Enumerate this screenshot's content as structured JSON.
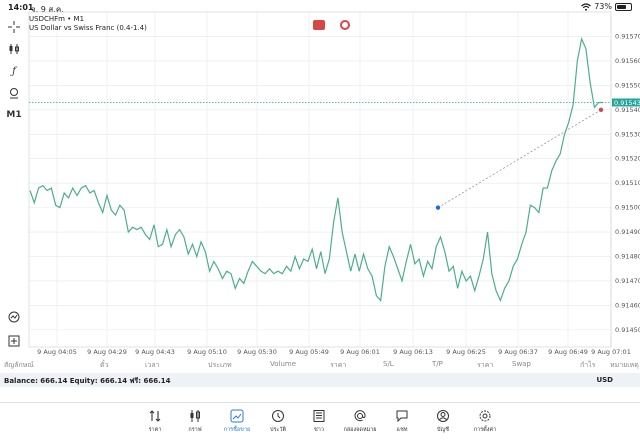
{
  "status_bar": {
    "time": "14:01",
    "date": "จ. 9 ส.ค.",
    "battery": "73%",
    "battery_level": 0.73
  },
  "chart": {
    "symbol_title": "USDCHFm • M1",
    "description": "US Dollar vs Swiss Franc (0.4-1.4)",
    "current_price_label": "0.91543"
  },
  "chart_data": {
    "type": "line",
    "title": "USDCHFm • M1",
    "subtitle": "US Dollar vs Swiss Franc (0.4-1.4)",
    "ylim": [
      0.91443,
      0.9158
    ],
    "y_ticks": [
      "0.91570",
      "0.91560",
      "0.91550",
      "0.91540",
      "0.91530",
      "0.91520",
      "0.91510",
      "0.91500",
      "0.91490",
      "0.91480",
      "0.91470",
      "0.91460",
      "0.91450"
    ],
    "y_tick_values": [
      0.9157,
      0.9156,
      0.9155,
      0.9154,
      0.9153,
      0.9152,
      0.9151,
      0.915,
      0.9149,
      0.9148,
      0.9147,
      0.9146,
      0.9145
    ],
    "x_ticks": [
      "9 Aug 04:05",
      "9 Aug 04:29",
      "9 Aug 04:43",
      "9 Aug 05:10",
      "9 Aug 05:30",
      "9 Aug 05:49",
      "9 Aug 06:01",
      "9 Aug 06:13",
      "9 Aug 06:25",
      "9 Aug 06:37",
      "9 Aug 06:49",
      "9 Aug 07:01"
    ],
    "grid": true,
    "current_price": 0.91543,
    "series": [
      {
        "values": [
          0.91507,
          0.91502,
          0.91508,
          0.91509,
          0.91507,
          0.91508,
          0.91501,
          0.915,
          0.91506,
          0.91504,
          0.91508,
          0.91505,
          0.91508,
          0.91509,
          0.91506,
          0.91507,
          0.91502,
          0.91498,
          0.91505,
          0.91499,
          0.91497,
          0.91501,
          0.91499,
          0.9149,
          0.91492,
          0.91491,
          0.91492,
          0.91489,
          0.91487,
          0.91493,
          0.91484,
          0.91485,
          0.91491,
          0.91484,
          0.91489,
          0.91491,
          0.91488,
          0.91481,
          0.91485,
          0.9148,
          0.91486,
          0.91482,
          0.91474,
          0.91478,
          0.91475,
          0.91471,
          0.91474,
          0.91473,
          0.91467,
          0.91471,
          0.91469,
          0.91474,
          0.91478,
          0.91476,
          0.91474,
          0.91473,
          0.91475,
          0.91473,
          0.91474,
          0.91473,
          0.91476,
          0.91474,
          0.9148,
          0.91475,
          0.91479,
          0.91478,
          0.91483,
          0.91475,
          0.91482,
          0.91473,
          0.91479,
          0.91494,
          0.91504,
          0.9149,
          0.91482,
          0.91474,
          0.91481,
          0.91474,
          0.91481,
          0.91475,
          0.91472,
          0.91464,
          0.91462,
          0.91476,
          0.91484,
          0.9148,
          0.91475,
          0.9147,
          0.91478,
          0.91485,
          0.91477,
          0.91479,
          0.91472,
          0.91478,
          0.91475,
          0.91484,
          0.91488,
          0.91482,
          0.91474,
          0.91476,
          0.91467,
          0.91474,
          0.9147,
          0.91472,
          0.91466,
          0.91472,
          0.91479,
          0.9149,
          0.91473,
          0.91466,
          0.91462,
          0.91467,
          0.9147,
          0.91476,
          0.91479,
          0.91485,
          0.9149,
          0.91501,
          0.915,
          0.91498,
          0.91508,
          0.91508,
          0.91515,
          0.91519,
          0.91522,
          0.9153,
          0.91535,
          0.91542,
          0.9156,
          0.91569,
          0.91565,
          0.91551,
          0.91541,
          0.91543,
          0.91543
        ]
      }
    ],
    "annotation_line": {
      "from": [
        0.915
      ],
      "to": [
        0.9154
      ]
    }
  },
  "table_header": {
    "columns": [
      "สัญลักษณ์",
      "ตั๋ว",
      "เวลา",
      "ประเภท",
      "Volume",
      "ราคา",
      "S/L",
      "T/P",
      "ราคา",
      "Swap",
      "กำไร",
      "หมายเหตุ"
    ]
  },
  "balance_bar": {
    "text": "Balance: 666.14 Equity: 666.14 ฟรี: 666.14",
    "currency": "USD"
  },
  "bottom_nav": {
    "items": [
      {
        "label": "ราคา",
        "icon": "arrows-updown-icon"
      },
      {
        "label": "กราฟ",
        "icon": "candles-icon"
      },
      {
        "label": "การซื้อขาย",
        "icon": "trade-chart-icon",
        "active": true
      },
      {
        "label": "ประวัติ",
        "icon": "history-icon"
      },
      {
        "label": "ข่าว",
        "icon": "news-icon"
      },
      {
        "label": "กล่องจดหมาย",
        "icon": "mailbox-icon"
      },
      {
        "label": "แชท",
        "icon": "chat-icon"
      },
      {
        "label": "บัญชี",
        "icon": "account-icon"
      },
      {
        "label": "การตั้งค่า",
        "icon": "settings-icon"
      }
    ]
  },
  "colors": {
    "line": "#4caf8a",
    "grid": "#e4e8ee",
    "price_badge": "#26a69a",
    "annotation": "#1e6fd9",
    "active": "#2a7bd5"
  }
}
